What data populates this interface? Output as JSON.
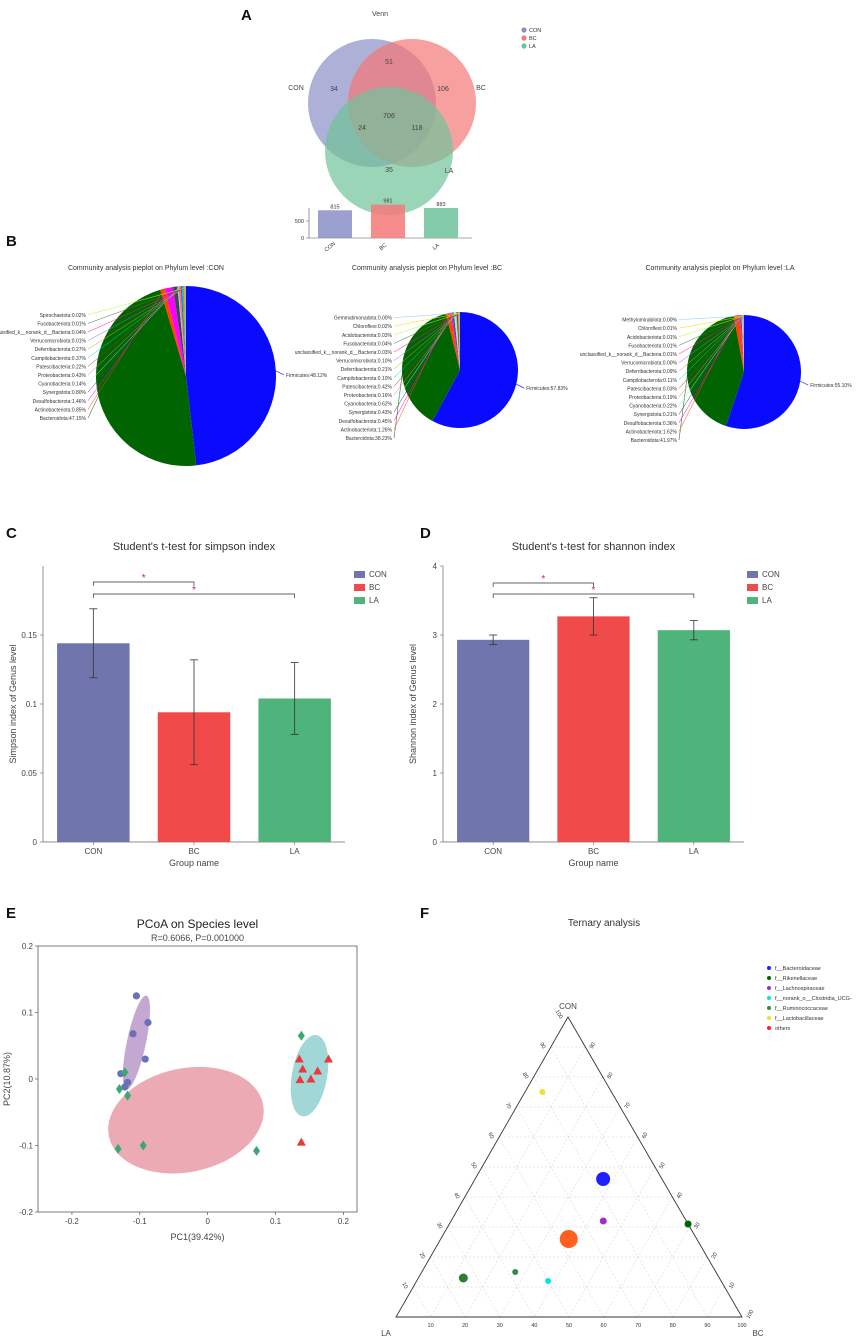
{
  "figure": {
    "colors": {
      "CON": "#8a8fc6",
      "BC": "#f47878",
      "LA": "#6fc39a",
      "CON_bar": "#7075ad",
      "BC_bar": "#f04a4a",
      "LA_bar": "#4fb37c"
    }
  },
  "chart_data": [
    {
      "panel": "A",
      "type": "venn",
      "title": "Venn",
      "sets": [
        "CON",
        "BC",
        "LA"
      ],
      "regions": {
        "CON_only": "34",
        "BC_only": "106",
        "LA_only": "35",
        "CON_BC": "51",
        "CON_LA": "24",
        "BC_LA": "118",
        "all": "706"
      },
      "legend": [
        "CON",
        "BC",
        "LA"
      ],
      "bar": {
        "type": "bar",
        "categories": [
          "CON",
          "BC",
          "LA"
        ],
        "values": [
          815,
          981,
          883
        ],
        "labels": [
          "815",
          "981",
          "883"
        ],
        "ylim": [
          0,
          1000
        ],
        "yticks": [
          "500",
          "0"
        ]
      }
    },
    {
      "panel": "B",
      "type": "pie",
      "pies": [
        {
          "title": "Community analysis pieplot on Phylum level :CON",
          "slices": [
            {
              "label": "Firmicutes:48.12%",
              "value": 48.12,
              "color": "#0a0aff"
            },
            {
              "label": "Bacteroidota:47.15%",
              "value": 47.15,
              "color": "#006400"
            },
            {
              "label": "Actinobacteriota:0.85%",
              "value": 0.85,
              "color": "#ff4500"
            },
            {
              "label": "Desulfobacterota:1.46%",
              "value": 1.46,
              "color": "#ff00ff"
            },
            {
              "label": "Synergistota:0.80%",
              "value": 0.8,
              "color": "#2f4f4f"
            },
            {
              "label": "Cyanobacteria:0.14%",
              "value": 0.14,
              "color": "#7fffd4"
            },
            {
              "label": "Proteobacteria:0.43%",
              "value": 0.43,
              "color": "#ff69b4"
            },
            {
              "label": "Patescibacteria:0.22%",
              "value": 0.22,
              "color": "#8b4513"
            },
            {
              "label": "Campilobacterota:0.37%",
              "value": 0.37,
              "color": "#00ced1"
            },
            {
              "label": "Deferribacterota:0.27%",
              "value": 0.27,
              "color": "#daa520"
            },
            {
              "label": "Verrucomicrobiota:0.01%",
              "value": 0.01,
              "color": "#9370db"
            },
            {
              "label": "unclassified_k__norank_d__Bacteria:0.04%",
              "value": 0.04,
              "color": "#ff1493"
            },
            {
              "label": "Fusobacteriota:0.01%",
              "value": 0.01,
              "color": "#556b2f"
            },
            {
              "label": "Spirochaetota:0.02%",
              "value": 0.02,
              "color": "#adff2f"
            }
          ]
        },
        {
          "title": "Community analysis pieplot on Phylum level :BC",
          "slices": [
            {
              "label": "Firmicutes:57.83%",
              "value": 57.83,
              "color": "#0a0aff"
            },
            {
              "label": "Bacteroidota:38.23%",
              "value": 38.23,
              "color": "#006400"
            },
            {
              "label": "Actinobacteriota:1.26%",
              "value": 1.26,
              "color": "#ff4500"
            },
            {
              "label": "Desulfobacterota:0.45%",
              "value": 0.45,
              "color": "#ff00ff"
            },
            {
              "label": "Synergistota:0.43%",
              "value": 0.43,
              "color": "#2f4f4f"
            },
            {
              "label": "Cyanobacteria:0.62%",
              "value": 0.62,
              "color": "#7fffd4"
            },
            {
              "label": "Proteobacteria:0.16%",
              "value": 0.16,
              "color": "#ff69b4"
            },
            {
              "label": "Patescibacteria:0.42%",
              "value": 0.42,
              "color": "#8b4513"
            },
            {
              "label": "Campilobacterota:0.10%",
              "value": 0.1,
              "color": "#00ced1"
            },
            {
              "label": "Deferribacterota:0.21%",
              "value": 0.21,
              "color": "#daa520"
            },
            {
              "label": "Verrucomicrobiota:0.10%",
              "value": 0.1,
              "color": "#9370db"
            },
            {
              "label": "unclassified_k__norank_d__Bacteria:0.03%",
              "value": 0.03,
              "color": "#ff1493"
            },
            {
              "label": "Fusobacteriota:0.04%",
              "value": 0.04,
              "color": "#556b2f"
            },
            {
              "label": "Acidobacteriota:0.03%",
              "value": 0.03,
              "color": "#adff2f"
            },
            {
              "label": "Chloroflexi:0.02%",
              "value": 0.02,
              "color": "#ffd700"
            },
            {
              "label": "Gemmatimonadota:0.00%",
              "value": 0.0,
              "color": "#87ceeb"
            }
          ]
        },
        {
          "title": "Community analysis pieplot on Phylum level :LA",
          "slices": [
            {
              "label": "Firmicutes:55.10%",
              "value": 55.1,
              "color": "#0a0aff"
            },
            {
              "label": "Bacteroidota:41.97%",
              "value": 41.97,
              "color": "#006400"
            },
            {
              "label": "Actinobacteriota:1.62%",
              "value": 1.62,
              "color": "#ff4500"
            },
            {
              "label": "Desulfobacterota:0.36%",
              "value": 0.36,
              "color": "#ff00ff"
            },
            {
              "label": "Synergistota:0.21%",
              "value": 0.21,
              "color": "#2f4f4f"
            },
            {
              "label": "Cyanobacteria:0.22%",
              "value": 0.22,
              "color": "#7fffd4"
            },
            {
              "label": "Proteobacteria:0.19%",
              "value": 0.19,
              "color": "#ff69b4"
            },
            {
              "label": "Patescibacteria:0.03%",
              "value": 0.03,
              "color": "#8b4513"
            },
            {
              "label": "Campilobacterota:0.11%",
              "value": 0.11,
              "color": "#00ced1"
            },
            {
              "label": "Deferribacterota:0.09%",
              "value": 0.09,
              "color": "#daa520"
            },
            {
              "label": "Verrucomicrobiota:0.00%",
              "value": 0.0,
              "color": "#9370db"
            },
            {
              "label": "unclassified_k__norank_d__Bacteria:0.01%",
              "value": 0.01,
              "color": "#ff1493"
            },
            {
              "label": "Fusobacteriota:0.01%",
              "value": 0.01,
              "color": "#556b2f"
            },
            {
              "label": "Acidobacteriota:0.01%",
              "value": 0.01,
              "color": "#adff2f"
            },
            {
              "label": "Chloroflexi:0.01%",
              "value": 0.01,
              "color": "#ffd700"
            },
            {
              "label": "Methylomirabilota:0.00%",
              "value": 0.0,
              "color": "#87ceeb"
            }
          ]
        }
      ]
    },
    {
      "panel": "C",
      "type": "bar",
      "title": "Student's t-test for simpson index",
      "categories": [
        "CON",
        "BC",
        "LA"
      ],
      "values": [
        0.144,
        0.094,
        0.104
      ],
      "errors": [
        0.025,
        0.038,
        0.026
      ],
      "xlabel": "Group name",
      "ylabel": "Simpson index of Genus level",
      "ylim": [
        0,
        0.2
      ],
      "yticks": [
        "0",
        "0.05",
        "0.1",
        "0.15"
      ],
      "sig": [
        "*",
        "*"
      ],
      "legend": [
        "CON",
        "BC",
        "LA"
      ]
    },
    {
      "panel": "D",
      "type": "bar",
      "title": "Student's t-test for shannon index",
      "categories": [
        "CON",
        "BC",
        "LA"
      ],
      "values": [
        2.93,
        3.27,
        3.07
      ],
      "errors": [
        0.07,
        0.27,
        0.14
      ],
      "xlabel": "Group name",
      "ylabel": "Shannon index of Genus level",
      "ylim": [
        0,
        4
      ],
      "yticks": [
        "0",
        "1",
        "2",
        "3",
        "4"
      ],
      "sig": [
        "*",
        "*"
      ],
      "legend": [
        "CON",
        "BC",
        "LA"
      ]
    },
    {
      "panel": "E",
      "type": "scatter",
      "title": "PCoA on Species level",
      "subtitle": "R=0.6066, P=0.001000",
      "xlabel": "PC1(39.42%)",
      "ylabel": "PC2(10.87%)",
      "xlim": [
        -0.25,
        0.22
      ],
      "ylim": [
        -0.2,
        0.2
      ],
      "xticks": [
        "-0.2",
        "-0.1",
        "0",
        "0.1",
        "0.2"
      ],
      "yticks": [
        "-0.2",
        "-0.1",
        "0",
        "0.1",
        "0.2"
      ],
      "series": [
        {
          "name": "CON",
          "marker": "circle",
          "color": "#6a71b8",
          "x": [
            -0.105,
            -0.088,
            -0.092,
            -0.11,
            -0.128,
            -0.118,
            -0.122
          ],
          "y": [
            0.125,
            0.085,
            0.03,
            0.068,
            0.008,
            -0.005,
            -0.012
          ]
        },
        {
          "name": "BC",
          "marker": "triangle",
          "color": "#e83a3a",
          "x": [
            0.135,
            0.178,
            0.162,
            0.152,
            0.14,
            0.136,
            0.138
          ],
          "y": [
            0.03,
            0.03,
            0.012,
            0.0,
            0.015,
            -0.001,
            -0.095
          ]
        },
        {
          "name": "LA",
          "marker": "diamond",
          "color": "#3aa872",
          "x": [
            -0.13,
            -0.122,
            -0.118,
            -0.132,
            -0.095,
            0.072,
            0.138
          ],
          "y": [
            -0.015,
            0.01,
            -0.025,
            -0.105,
            -0.1,
            -0.108,
            0.065
          ]
        }
      ],
      "ellipses": [
        {
          "name": "CON",
          "color": "#a57ab8"
        },
        {
          "name": "BC",
          "color": "#e07c8c"
        },
        {
          "name": "LA",
          "color": "#6fc1c1"
        }
      ]
    },
    {
      "panel": "F",
      "type": "scatter",
      "title": "Ternary analysis",
      "axes": [
        "CON",
        "BC",
        "LA"
      ],
      "ticks": [
        "10",
        "20",
        "30",
        "40",
        "50",
        "60",
        "70",
        "80",
        "90",
        "100"
      ],
      "points": [
        {
          "name": "f__Bacteroidaceae",
          "con": 46,
          "bc": 37,
          "la": 17,
          "color": "#2020ff",
          "size": 7
        },
        {
          "name": "f__Rikenellaceae",
          "con": 31,
          "bc": 69,
          "la": 0,
          "color": "#006400",
          "size": 3.5
        },
        {
          "name": "f__Lachnospiraceae",
          "con": 32,
          "bc": 44,
          "la": 24,
          "color": "#9932cc",
          "size": 3.5
        },
        {
          "name": "f__norank_o__Clostridia_UCG-",
          "con": 12,
          "bc": 38,
          "la": 50,
          "color": "#00e5e5",
          "size": 3
        },
        {
          "name": "f__Ruminococcaceae",
          "con": 15,
          "bc": 27,
          "la": 58,
          "color": "#2e8b57",
          "size": 3
        },
        {
          "name": "f__Lactobacillaceae",
          "con": 13,
          "bc": 13,
          "la": 74,
          "color": "#2e7d32",
          "size": 4.5
        },
        {
          "name": "f__Lactobacillaceae_y",
          "con": 75,
          "bc": 5,
          "la": 20,
          "color": "#f0e030",
          "size": 3
        },
        {
          "name": "others",
          "con": 26,
          "bc": 37,
          "la": 37,
          "color": "#ff6020",
          "size": 9
        }
      ],
      "legend": [
        {
          "label": "f__Bacteroidaceae",
          "color": "#2020ff"
        },
        {
          "label": "f__Rikenellaceae",
          "color": "#006400"
        },
        {
          "label": "f__Lachnospiraceae",
          "color": "#9932cc"
        },
        {
          "label": "f__norank_o__Clostridia_UCG-",
          "color": "#00e5e5"
        },
        {
          "label": "f__Ruminococcaceae",
          "color": "#2e8b57"
        },
        {
          "label": "f__Lactobacillaceae",
          "color": "#f0e030"
        },
        {
          "label": "others",
          "color": "#ff2020"
        }
      ]
    }
  ],
  "panels": {
    "A": "A",
    "B": "B",
    "C": "C",
    "D": "D",
    "E": "E",
    "F": "F"
  }
}
